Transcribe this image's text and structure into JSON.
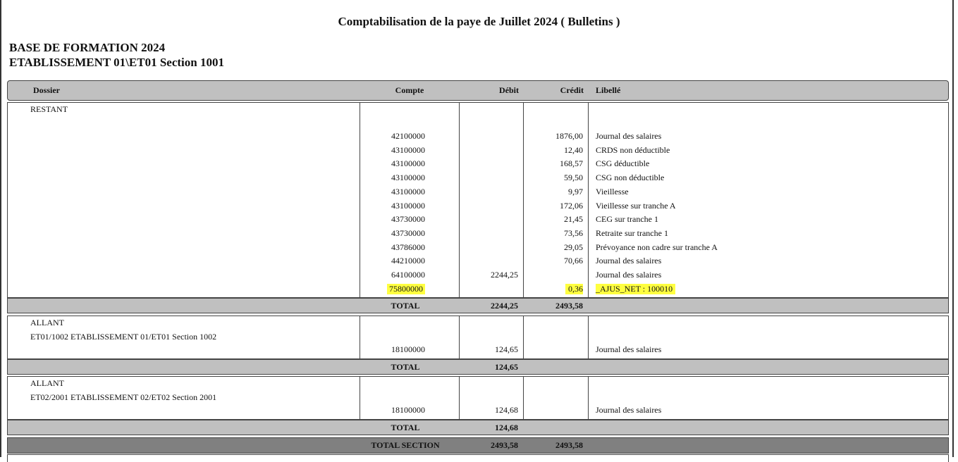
{
  "title": "Comptabilisation de la paye de Juillet 2024 ( Bulletins )",
  "company": "BASE DE FORMATION 2024",
  "establishment": "ETABLISSEMENT 01\\ET01 Section 1001",
  "columns": {
    "dossier": "Dossier",
    "compte": "Compte",
    "debit": "Débit",
    "credit": "Crédit",
    "libelle": "Libellé"
  },
  "highlight_color": "#ffff40",
  "sections": [
    {
      "type": "RESTANT",
      "label": "",
      "rows": [
        {
          "compte": "42100000",
          "debit": "",
          "credit": "1876,00",
          "libelle": "Journal des salaires"
        },
        {
          "compte": "43100000",
          "debit": "",
          "credit": "12,40",
          "libelle": "CRDS non déductible"
        },
        {
          "compte": "43100000",
          "debit": "",
          "credit": "168,57",
          "libelle": "CSG déductible"
        },
        {
          "compte": "43100000",
          "debit": "",
          "credit": "59,50",
          "libelle": "CSG non déductible"
        },
        {
          "compte": "43100000",
          "debit": "",
          "credit": "9,97",
          "libelle": "Vieillesse"
        },
        {
          "compte": "43100000",
          "debit": "",
          "credit": "172,06",
          "libelle": "Vieillesse sur tranche A"
        },
        {
          "compte": "43730000",
          "debit": "",
          "credit": "21,45",
          "libelle": "CEG sur tranche 1"
        },
        {
          "compte": "43730000",
          "debit": "",
          "credit": "73,56",
          "libelle": "Retraite sur tranche 1"
        },
        {
          "compte": "43786000",
          "debit": "",
          "credit": "29,05",
          "libelle": "Prévoyance non cadre sur tranche A"
        },
        {
          "compte": "44210000",
          "debit": "",
          "credit": "70,66",
          "libelle": "Journal des salaires"
        },
        {
          "compte": "64100000",
          "debit": "2244,25",
          "credit": "",
          "libelle": "Journal des salaires"
        },
        {
          "compte": "75800000",
          "debit": "",
          "credit": "0,36",
          "libelle": "_AJUS_NET : 100010",
          "highlighted": true
        }
      ],
      "total": {
        "label": "TOTAL",
        "debit": "2244,25",
        "credit": "2493,58"
      }
    },
    {
      "type": "ALLANT",
      "label": "ET01/1002  ETABLISSEMENT 01/ET01 Section 1002",
      "rows": [
        {
          "compte": "18100000",
          "debit": "124,65",
          "credit": "",
          "libelle": "Journal des salaires"
        }
      ],
      "total": {
        "label": "TOTAL",
        "debit": "124,65",
        "credit": ""
      }
    },
    {
      "type": "ALLANT",
      "label": "ET02/2001  ETABLISSEMENT 02/ET02 Section 2001",
      "rows": [
        {
          "compte": "18100000",
          "debit": "124,68",
          "credit": "",
          "libelle": "Journal des salaires"
        }
      ],
      "total": {
        "label": "TOTAL",
        "debit": "124,68",
        "credit": ""
      }
    }
  ],
  "total_section": {
    "label": "TOTAL SECTION",
    "debit": "2493,58",
    "credit": "2493,58"
  }
}
